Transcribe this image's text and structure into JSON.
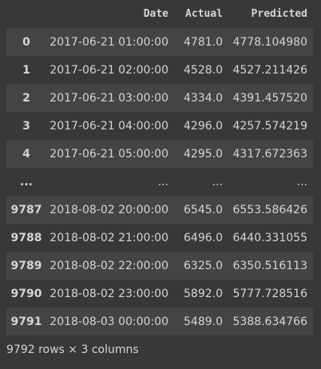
{
  "table": {
    "columns": [
      "Date",
      "Actual",
      "Predicted"
    ],
    "rows": [
      {
        "index": "0",
        "date": "2017-06-21 01:00:00",
        "actual": "4781.0",
        "predicted": "4778.104980"
      },
      {
        "index": "1",
        "date": "2017-06-21 02:00:00",
        "actual": "4528.0",
        "predicted": "4527.211426"
      },
      {
        "index": "2",
        "date": "2017-06-21 03:00:00",
        "actual": "4334.0",
        "predicted": "4391.457520"
      },
      {
        "index": "3",
        "date": "2017-06-21 04:00:00",
        "actual": "4296.0",
        "predicted": "4257.574219"
      },
      {
        "index": "4",
        "date": "2017-06-21 05:00:00",
        "actual": "4295.0",
        "predicted": "4317.672363"
      },
      {
        "index": "...",
        "date": "...",
        "actual": "...",
        "predicted": "..."
      },
      {
        "index": "9787",
        "date": "2018-08-02 20:00:00",
        "actual": "6545.0",
        "predicted": "6553.586426"
      },
      {
        "index": "9788",
        "date": "2018-08-02 21:00:00",
        "actual": "6496.0",
        "predicted": "6440.331055"
      },
      {
        "index": "9789",
        "date": "2018-08-02 22:00:00",
        "actual": "6325.0",
        "predicted": "6350.516113"
      },
      {
        "index": "9790",
        "date": "2018-08-02 23:00:00",
        "actual": "5892.0",
        "predicted": "5777.728516"
      },
      {
        "index": "9791",
        "date": "2018-08-03 00:00:00",
        "actual": "5489.0",
        "predicted": "5388.634766"
      }
    ]
  },
  "shape_note": "9792 rows × 3 columns",
  "colors": {
    "background": "#383838",
    "stripe": "#444444",
    "text": "#d5d5d5"
  }
}
